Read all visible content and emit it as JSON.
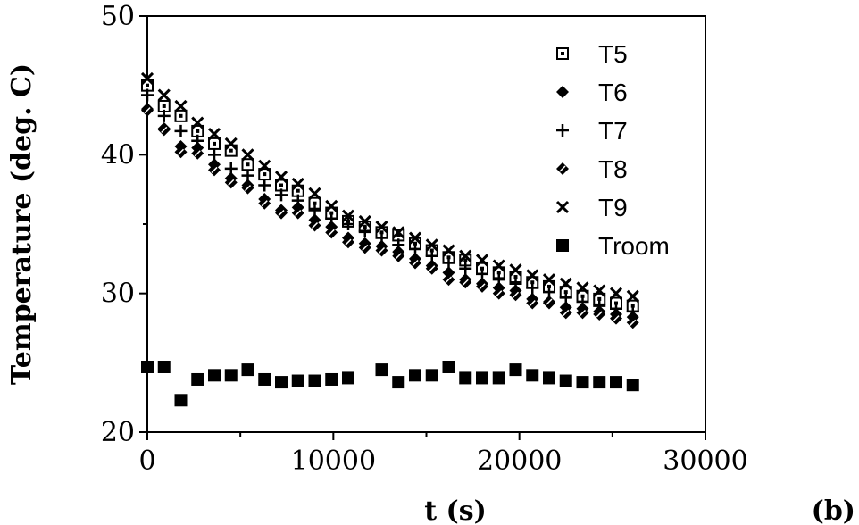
{
  "chart_data": {
    "type": "scatter",
    "title": "",
    "xlabel": "t (s)",
    "ylabel": "Temperature (deg. C)",
    "panel_label": "(b)",
    "xlim": [
      0,
      30000
    ],
    "ylim": [
      20,
      50
    ],
    "xticks": [
      0,
      10000,
      20000,
      30000
    ],
    "yticks": [
      20,
      30,
      40,
      50
    ],
    "xtick_labels": [
      "0",
      "10000",
      "20000",
      "30000"
    ],
    "ytick_labels": [
      "20",
      "30",
      "40",
      "50"
    ],
    "grid": false,
    "legend_position": "top-right",
    "x": [
      0,
      900,
      1800,
      2700,
      3600,
      4500,
      5400,
      6300,
      7200,
      8100,
      9000,
      9900,
      10800,
      11700,
      12600,
      13500,
      14400,
      15300,
      16200,
      17100,
      18000,
      18900,
      19800,
      20700,
      21600,
      22500,
      23400,
      24300,
      25200,
      26100
    ],
    "series": [
      {
        "name": "T5",
        "marker": "square-dot",
        "values": [
          45.0,
          43.5,
          42.8,
          41.7,
          40.8,
          40.3,
          39.3,
          38.6,
          37.8,
          37.4,
          36.5,
          35.8,
          35.2,
          34.8,
          34.4,
          34.2,
          33.6,
          33.1,
          32.6,
          32.4,
          31.8,
          31.5,
          31.2,
          30.8,
          30.5,
          30.1,
          29.8,
          29.6,
          29.3,
          29.1
        ]
      },
      {
        "name": "T6",
        "marker": "diamond",
        "values": [
          43.3,
          41.9,
          40.6,
          40.5,
          39.3,
          38.3,
          37.8,
          36.8,
          36.0,
          36.2,
          35.3,
          34.8,
          34.0,
          33.6,
          33.4,
          33.0,
          32.5,
          32.0,
          31.5,
          31.0,
          30.7,
          30.4,
          30.2,
          29.6,
          29.3,
          29.0,
          28.9,
          28.7,
          28.5,
          28.3
        ]
      },
      {
        "name": "T7",
        "marker": "plus",
        "values": [
          44.3,
          42.8,
          41.7,
          41.0,
          40.0,
          39.0,
          38.5,
          37.8,
          37.1,
          36.7,
          36.0,
          35.4,
          35.0,
          34.5,
          34.0,
          33.5,
          33.2,
          32.7,
          32.2,
          31.8,
          31.4,
          31.0,
          30.7,
          30.4,
          30.1,
          29.7,
          29.4,
          29.1,
          28.9,
          28.7
        ]
      },
      {
        "name": "T8",
        "marker": "diamond-dot",
        "values": [
          43.2,
          41.8,
          40.2,
          40.1,
          38.9,
          38.0,
          37.6,
          36.5,
          35.8,
          35.8,
          34.9,
          34.4,
          33.7,
          33.3,
          33.1,
          32.7,
          32.2,
          31.8,
          31.0,
          30.8,
          30.5,
          30.0,
          29.9,
          29.3,
          29.4,
          28.6,
          28.6,
          28.5,
          28.2,
          27.9
        ]
      },
      {
        "name": "T9",
        "marker": "cross",
        "values": [
          45.5,
          44.3,
          43.5,
          42.3,
          41.5,
          40.8,
          40.0,
          39.2,
          38.4,
          37.9,
          37.2,
          36.3,
          35.6,
          35.2,
          34.8,
          34.4,
          34.0,
          33.5,
          33.1,
          32.7,
          32.4,
          32.0,
          31.7,
          31.3,
          31.0,
          30.7,
          30.4,
          30.2,
          30.0,
          29.8
        ]
      },
      {
        "name": "Troom",
        "marker": "filled-square",
        "x": [
          0,
          900,
          1800,
          2700,
          3600,
          4500,
          5400,
          6300,
          7200,
          8100,
          9000,
          9900,
          10800,
          12600,
          13500,
          14400,
          15300,
          16200,
          17100,
          18000,
          18900,
          19800,
          20700,
          21600,
          22500,
          23400,
          24300,
          25200,
          26100
        ],
        "values": [
          24.7,
          24.7,
          22.3,
          23.8,
          24.1,
          24.1,
          24.5,
          23.8,
          23.6,
          23.7,
          23.7,
          23.8,
          23.9,
          24.5,
          23.6,
          24.1,
          24.1,
          24.7,
          23.9,
          23.9,
          23.9,
          24.5,
          24.1,
          23.9,
          23.7,
          23.6,
          23.6,
          23.6,
          23.4
        ]
      }
    ]
  }
}
